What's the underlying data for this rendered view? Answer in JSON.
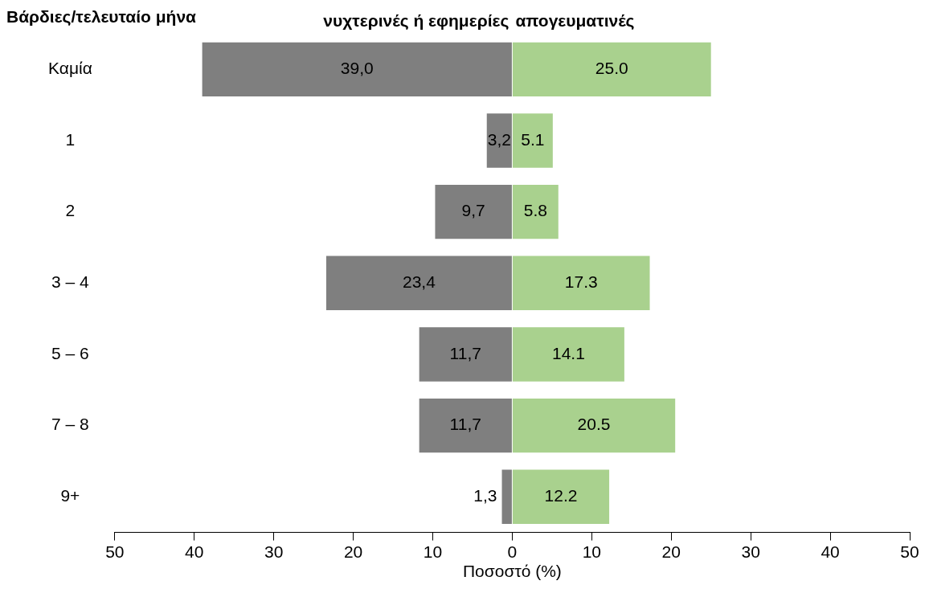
{
  "chart_data": {
    "type": "bar",
    "orientation": "horizontal",
    "ylabel": "Βάρδιες/τελευταίο μήνα",
    "xlabel": "Ποσοστό (%)",
    "categories": [
      "Καμία",
      "1",
      "2",
      "3 – 4",
      "5 – 6",
      "7 – 8",
      "9+"
    ],
    "series": [
      {
        "name": "νυχτερινές ή εφημερίες",
        "color": "#7f7f7f",
        "values": [
          39.0,
          3.2,
          9.7,
          23.4,
          11.7,
          11.7,
          1.3
        ],
        "base": [
          -39.0,
          -3.2,
          -9.7,
          -23.4,
          -11.7,
          -11.7,
          -1.3
        ],
        "value_labels": [
          "39,0",
          "3,2",
          "9,7",
          "23,4",
          "11,7",
          "11,7",
          "1,3"
        ]
      },
      {
        "name": "απογευματινές",
        "color": "#a9d18e",
        "values": [
          25.0,
          5.1,
          5.8,
          17.3,
          14.1,
          20.5,
          12.2
        ],
        "value_labels": [
          "25.0",
          "5.1",
          "5.8",
          "17.3",
          "14.1",
          "20.5",
          "12.2"
        ]
      }
    ],
    "xlim": [
      -50,
      50
    ],
    "xticks": [
      {
        "value": -50,
        "label": "50"
      },
      {
        "value": -40,
        "label": "40"
      },
      {
        "value": -30,
        "label": "30"
      },
      {
        "value": -20,
        "label": "20"
      },
      {
        "value": -10,
        "label": "10"
      },
      0,
      10,
      20,
      30,
      40,
      50
    ]
  }
}
